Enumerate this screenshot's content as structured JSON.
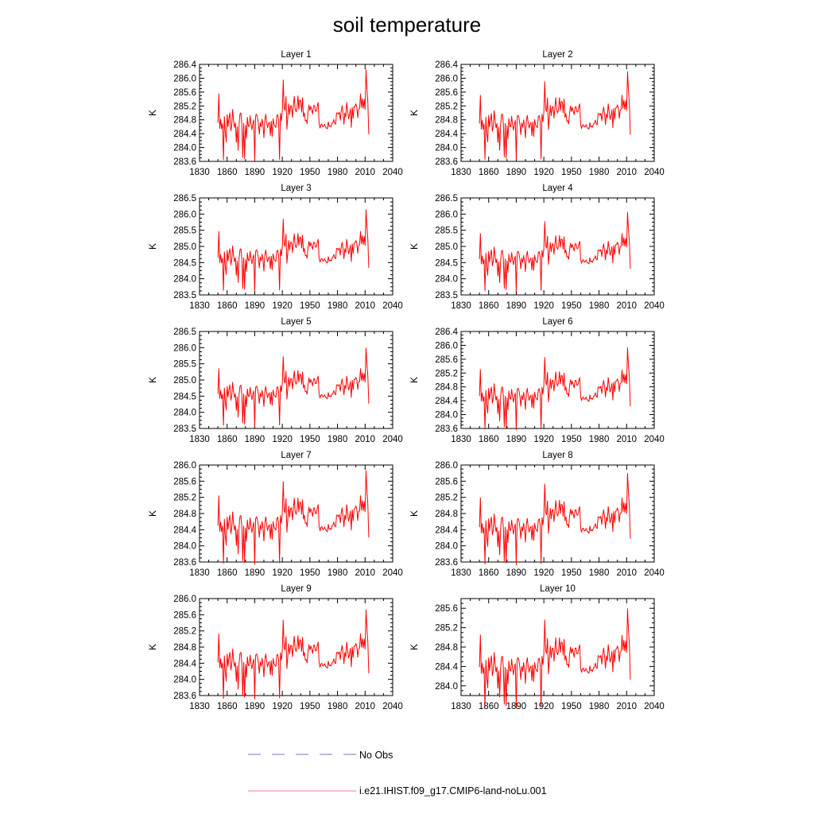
{
  "title": "soil temperature",
  "legend": [
    {
      "label": "No Obs",
      "color": "#6a78c8",
      "dash": true
    },
    {
      "label": "i.e21.IHIST.f09_g17.CMIP6-land-noLu.001",
      "color": "#f08080",
      "dash": false
    }
  ],
  "chart_data": [
    {
      "type": "line",
      "title": "Layer 1",
      "xlabel": "",
      "ylabel": "K",
      "xlim": [
        1830,
        2040
      ],
      "ylim": [
        283.6,
        286.4
      ],
      "xticks": [
        "1830",
        "1860",
        "1890",
        "1920",
        "1950",
        "1980",
        "2010",
        "2040"
      ],
      "yticks": [
        "283.6",
        "284.0",
        "284.4",
        "284.8",
        "285.2",
        "285.6",
        "286.0",
        "286.4"
      ],
      "series": [
        {
          "name": "i.e21.IHIST.f09_g17.CMIP6-land-noLu.001",
          "color": "#ff0000",
          "x_start": 1850,
          "x_step": 1,
          "values": []
        }
      ]
    },
    {
      "type": "line",
      "title": "Layer 2",
      "xlabel": "",
      "ylabel": "K",
      "xlim": [
        1830,
        2040
      ],
      "ylim": [
        283.6,
        286.4
      ],
      "xticks": [
        "1830",
        "1860",
        "1890",
        "1920",
        "1950",
        "1980",
        "2010",
        "2040"
      ],
      "yticks": [
        "283.6",
        "284.0",
        "284.4",
        "284.8",
        "285.2",
        "285.6",
        "286.0",
        "286.4"
      ],
      "series": [
        {
          "name": "i.e21.IHIST.f09_g17.CMIP6-land-noLu.001",
          "color": "#ff0000",
          "x_start": 1850,
          "x_step": 1,
          "values": []
        }
      ]
    },
    {
      "type": "line",
      "title": "Layer 3",
      "xlabel": "",
      "ylabel": "K",
      "xlim": [
        1830,
        2040
      ],
      "ylim": [
        283.5,
        286.5
      ],
      "xticks": [
        "1830",
        "1860",
        "1890",
        "1920",
        "1950",
        "1980",
        "2010",
        "2040"
      ],
      "yticks": [
        "283.5",
        "284.0",
        "284.5",
        "285.0",
        "285.5",
        "286.0",
        "286.5"
      ],
      "series": [
        {
          "name": "i.e21.IHIST.f09_g17.CMIP6-land-noLu.001",
          "color": "#ff0000",
          "x_start": 1850,
          "x_step": 1,
          "values": []
        }
      ]
    },
    {
      "type": "line",
      "title": "Layer 4",
      "xlabel": "",
      "ylabel": "K",
      "xlim": [
        1830,
        2040
      ],
      "ylim": [
        283.5,
        286.5
      ],
      "xticks": [
        "1830",
        "1860",
        "1890",
        "1920",
        "1950",
        "1980",
        "2010",
        "2040"
      ],
      "yticks": [
        "283.5",
        "284.0",
        "284.5",
        "285.0",
        "285.5",
        "286.0",
        "286.5"
      ],
      "series": [
        {
          "name": "i.e21.IHIST.f09_g17.CMIP6-land-noLu.001",
          "color": "#ff0000",
          "x_start": 1850,
          "x_step": 1,
          "values": []
        }
      ]
    },
    {
      "type": "line",
      "title": "Layer 5",
      "xlabel": "",
      "ylabel": "K",
      "xlim": [
        1830,
        2040
      ],
      "ylim": [
        283.5,
        286.5
      ],
      "xticks": [
        "1830",
        "1860",
        "1890",
        "1920",
        "1950",
        "1980",
        "2010",
        "2040"
      ],
      "yticks": [
        "283.5",
        "284.0",
        "284.5",
        "285.0",
        "285.5",
        "286.0",
        "286.5"
      ],
      "series": [
        {
          "name": "i.e21.IHIST.f09_g17.CMIP6-land-noLu.001",
          "color": "#ff0000",
          "x_start": 1850,
          "x_step": 1,
          "values": []
        }
      ]
    },
    {
      "type": "line",
      "title": "Layer 6",
      "xlabel": "",
      "ylabel": "K",
      "xlim": [
        1830,
        2040
      ],
      "ylim": [
        283.6,
        286.4
      ],
      "xticks": [
        "1830",
        "1860",
        "1890",
        "1920",
        "1950",
        "1980",
        "2010",
        "2040"
      ],
      "yticks": [
        "283.6",
        "284.0",
        "284.4",
        "284.8",
        "285.2",
        "285.6",
        "286.0",
        "286.4"
      ],
      "series": [
        {
          "name": "i.e21.IHIST.f09_g17.CMIP6-land-noLu.001",
          "color": "#ff0000",
          "x_start": 1850,
          "x_step": 1,
          "values": []
        }
      ]
    },
    {
      "type": "line",
      "title": "Layer 7",
      "xlabel": "",
      "ylabel": "K",
      "xlim": [
        1830,
        2040
      ],
      "ylim": [
        283.6,
        286.0
      ],
      "xticks": [
        "1830",
        "1860",
        "1890",
        "1920",
        "1950",
        "1980",
        "2010",
        "2040"
      ],
      "yticks": [
        "283.6",
        "284.0",
        "284.4",
        "284.8",
        "285.2",
        "285.6",
        "286.0"
      ],
      "series": [
        {
          "name": "i.e21.IHIST.f09_g17.CMIP6-land-noLu.001",
          "color": "#ff0000",
          "x_start": 1850,
          "x_step": 1,
          "values": []
        }
      ]
    },
    {
      "type": "line",
      "title": "Layer 8",
      "xlabel": "",
      "ylabel": "K",
      "xlim": [
        1830,
        2040
      ],
      "ylim": [
        283.6,
        286.0
      ],
      "xticks": [
        "1830",
        "1860",
        "1890",
        "1920",
        "1950",
        "1980",
        "2010",
        "2040"
      ],
      "yticks": [
        "283.6",
        "284.0",
        "284.4",
        "284.8",
        "285.2",
        "285.6",
        "286.0"
      ],
      "series": [
        {
          "name": "i.e21.IHIST.f09_g17.CMIP6-land-noLu.001",
          "color": "#ff0000",
          "x_start": 1850,
          "x_step": 1,
          "values": []
        }
      ]
    },
    {
      "type": "line",
      "title": "Layer 9",
      "xlabel": "",
      "ylabel": "K",
      "xlim": [
        1830,
        2040
      ],
      "ylim": [
        283.6,
        286.0
      ],
      "xticks": [
        "1830",
        "1860",
        "1890",
        "1920",
        "1950",
        "1980",
        "2010",
        "2040"
      ],
      "yticks": [
        "283.6",
        "284.0",
        "284.4",
        "284.8",
        "285.2",
        "285.6",
        "286.0"
      ],
      "series": [
        {
          "name": "i.e21.IHIST.f09_g17.CMIP6-land-noLu.001",
          "color": "#ff0000",
          "x_start": 1850,
          "x_step": 1,
          "values": []
        }
      ]
    },
    {
      "type": "line",
      "title": "Layer 10",
      "xlabel": "",
      "ylabel": "K",
      "xlim": [
        1830,
        2040
      ],
      "ylim": [
        283.8,
        285.8
      ],
      "xticks": [
        "1830",
        "1860",
        "1890",
        "1920",
        "1950",
        "1980",
        "2010",
        "2040"
      ],
      "yticks": [
        "284.0",
        "284.4",
        "284.8",
        "285.2",
        "285.6"
      ],
      "series": [
        {
          "name": "i.e21.IHIST.f09_g17.CMIP6-land-noLu.001",
          "color": "#ff0000",
          "x_start": 1850,
          "x_step": 1,
          "values": []
        }
      ]
    }
  ]
}
